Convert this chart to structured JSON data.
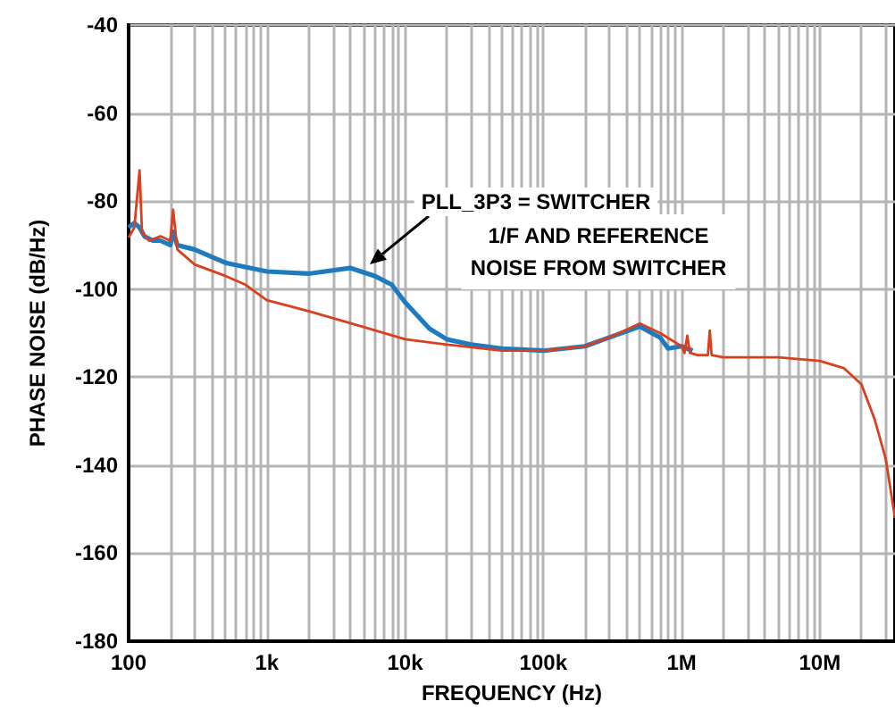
{
  "chart_data": {
    "type": "line",
    "xlabel": "FREQUENCY (Hz)",
    "ylabel": "PHASE NOISE (dB/Hz)",
    "log": "x",
    "grid": true,
    "marker": "none",
    "xlim": [
      100,
      35000000
    ],
    "ylim": [
      -180,
      -40
    ],
    "xticks": [
      100,
      {
        "value": 200,
        "label": null
      },
      {
        "value": 300,
        "label": null
      },
      {
        "value": 400,
        "label": null
      },
      {
        "value": 500,
        "label": null
      },
      {
        "value": 600,
        "label": null
      },
      {
        "value": 700,
        "label": null
      },
      {
        "value": 800,
        "label": null
      },
      {
        "value": 900,
        "label": null
      },
      {
        "value": 1000,
        "label": "1k"
      },
      {
        "value": 2000,
        "label": null
      },
      {
        "value": 3000,
        "label": null
      },
      {
        "value": 4000,
        "label": null
      },
      {
        "value": 5000,
        "label": null
      },
      {
        "value": 6000,
        "label": null
      },
      {
        "value": 7000,
        "label": null
      },
      {
        "value": 8000,
        "label": null
      },
      {
        "value": 9000,
        "label": null
      },
      {
        "value": 10000,
        "label": "10k"
      },
      {
        "value": 20000,
        "label": null
      },
      {
        "value": 30000,
        "label": null
      },
      {
        "value": 40000,
        "label": null
      },
      {
        "value": 50000,
        "label": null
      },
      {
        "value": 60000,
        "label": null
      },
      {
        "value": 70000,
        "label": null
      },
      {
        "value": 80000,
        "label": null
      },
      {
        "value": 90000,
        "label": null
      },
      {
        "value": 100000,
        "label": "100k"
      },
      {
        "value": 200000,
        "label": null
      },
      {
        "value": 300000,
        "label": null
      },
      {
        "value": 400000,
        "label": null
      },
      {
        "value": 500000,
        "label": null
      },
      {
        "value": 600000,
        "label": null
      },
      {
        "value": 700000,
        "label": null
      },
      {
        "value": 800000,
        "label": null
      },
      {
        "value": 900000,
        "label": null
      },
      {
        "value": 1000000,
        "label": "1M"
      },
      {
        "value": 2000000,
        "label": null
      },
      {
        "value": 3000000,
        "label": null
      },
      {
        "value": 4000000,
        "label": null
      },
      {
        "value": 5000000,
        "label": null
      },
      {
        "value": 6000000,
        "label": null
      },
      {
        "value": 7000000,
        "label": null
      },
      {
        "value": 8000000,
        "label": null
      },
      {
        "value": 9000000,
        "label": null
      },
      {
        "value": 10000000,
        "label": "10M"
      },
      {
        "value": 20000000,
        "label": null
      },
      {
        "value": 30000000,
        "label": null
      }
    ],
    "yticks": [
      -180,
      -160,
      -140,
      -120,
      -100,
      -80,
      -60,
      -40
    ],
    "series": [
      {
        "color": "#1f7bbf",
        "x": [
          100,
          110,
          120,
          130,
          150,
          170,
          200,
          210,
          225,
          300,
          500,
          700,
          1000,
          2000,
          4000,
          6000,
          8000,
          10000,
          15000,
          20000,
          30000,
          50000,
          100000,
          200000,
          300000,
          500000,
          700000,
          800000,
          1000000,
          1200000
        ],
        "values": [
          -86,
          -85,
          -86,
          -88,
          -89,
          -89,
          -90,
          -87,
          -90,
          -91,
          -94,
          -95,
          -96,
          -96.5,
          -95.2,
          -97,
          -99,
          -103,
          -109,
          -111.4,
          -112.6,
          -113.5,
          -114,
          -113,
          -111,
          -108.5,
          -111,
          -113.5,
          -113,
          -114
        ]
      },
      {
        "color": "#d9401e",
        "x": [
          100,
          110,
          120,
          125,
          140,
          170,
          200,
          210,
          225,
          300,
          500,
          700,
          1000,
          2000,
          5000,
          10000,
          20000,
          50000,
          100000,
          200000,
          300000,
          500000,
          700000,
          1000000,
          1050000,
          1100000,
          1150000,
          1300000,
          1550000,
          1600000,
          1650000,
          2000000,
          5000000,
          10000000,
          15000000,
          20000000,
          25000000,
          30000000,
          35000000
        ],
        "values": [
          -88.3,
          -86,
          -73,
          -87,
          -89,
          -88,
          -89,
          -82,
          -91,
          -94.4,
          -97,
          -99,
          -102.5,
          -105,
          -108.6,
          -111.4,
          -112.6,
          -114,
          -114,
          -113,
          -111,
          -107.8,
          -110,
          -113,
          -114.5,
          -110.6,
          -114.5,
          -115,
          -115,
          -109.4,
          -115,
          -115.5,
          -115.5,
          -116.3,
          -118,
          -121.6,
          -129.7,
          -138.6,
          -152
        ]
      }
    ],
    "annotations": [
      "PLL_3P3 = SWITCHER",
      "1/F AND REFERENCE\nNOISE FROM SWITCHER"
    ]
  }
}
